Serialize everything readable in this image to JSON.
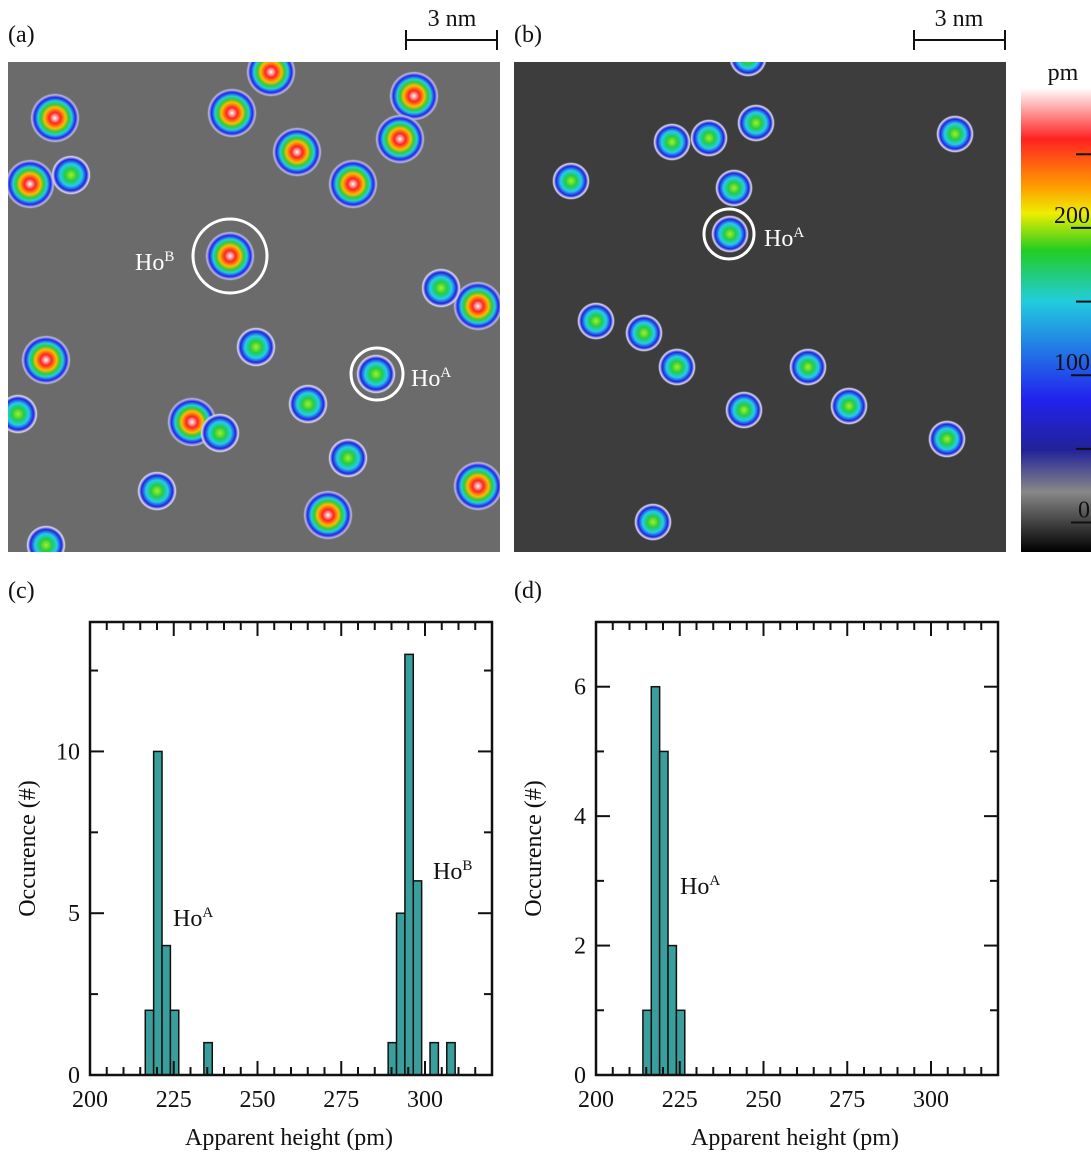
{
  "panel_labels": [
    "(a)",
    "(b)",
    "(c)",
    "(d)"
  ],
  "images": [
    {
      "scale_bar": "3 nm",
      "annotations": [
        {
          "text": "Ho",
          "sup": "B"
        },
        {
          "text": "Ho",
          "sup": "A"
        }
      ]
    },
    {
      "scale_bar": "3 nm",
      "annotations": [
        {
          "text": "Ho",
          "sup": "A"
        }
      ]
    }
  ],
  "colorbar": {
    "unit": "pm",
    "lim": [
      -20,
      295
    ],
    "ticks": [
      0,
      100,
      200
    ],
    "minor_ticks": [
      50,
      150,
      250
    ]
  },
  "chart_data": [
    {
      "type": "histogram",
      "color": "#3a9e9c",
      "bins": [
        216.5,
        219,
        221.5,
        224,
        226.5,
        229,
        231.5,
        234,
        236.5,
        239,
        241.5,
        244,
        246.5,
        249,
        251.5,
        254,
        256.5,
        259,
        261.5,
        264,
        266.5,
        269,
        271.5,
        274,
        276.5,
        279,
        281.5,
        284,
        286.5,
        289,
        291.5,
        294,
        296.5,
        299,
        301.5,
        304,
        306.5,
        309
      ],
      "values": [
        2,
        10,
        4,
        2,
        0,
        0,
        0,
        1,
        0,
        0,
        0,
        0,
        0,
        0,
        0,
        0,
        0,
        0,
        0,
        0,
        0,
        0,
        0,
        0,
        0,
        0,
        0,
        0,
        0,
        1,
        5,
        13,
        6,
        0,
        1,
        0,
        1
      ],
      "xlim": [
        200,
        320
      ],
      "ylim": [
        0,
        14
      ],
      "xticks": [
        200,
        225,
        250,
        275,
        300
      ],
      "yticks": [
        0,
        5,
        10
      ],
      "xticks_minor": [
        205,
        210,
        215,
        220,
        230,
        235,
        240,
        245,
        255,
        260,
        265,
        270,
        280,
        285,
        290,
        295,
        305,
        310,
        315
      ],
      "yticks_minor": [
        2.5,
        7.5,
        12.5
      ],
      "xlabel": "Apparent height (pm)",
      "ylabel": "Occurence (#)",
      "annotations": [
        {
          "text": "Ho",
          "sup": "A"
        },
        {
          "text": "Ho",
          "sup": "B"
        }
      ]
    },
    {
      "type": "histogram",
      "color": "#3a9e9c",
      "bins": [
        214,
        216.5,
        219,
        221.5,
        224,
        226.5
      ],
      "values": [
        1,
        6,
        5,
        2,
        1
      ],
      "xlim": [
        200,
        320
      ],
      "ylim": [
        0,
        7
      ],
      "xticks": [
        200,
        225,
        250,
        275,
        300
      ],
      "yticks": [
        0,
        2,
        4,
        6
      ],
      "xticks_minor": [
        205,
        210,
        215,
        220,
        230,
        235,
        240,
        245,
        255,
        260,
        265,
        270,
        280,
        285,
        290,
        295,
        305,
        310,
        315
      ],
      "yticks_minor": [
        1,
        3,
        5
      ],
      "xlabel": "Apparent height (pm)",
      "ylabel": "Occurence (#)",
      "annotations": [
        {
          "text": "Ho",
          "sup": "A"
        }
      ]
    }
  ]
}
